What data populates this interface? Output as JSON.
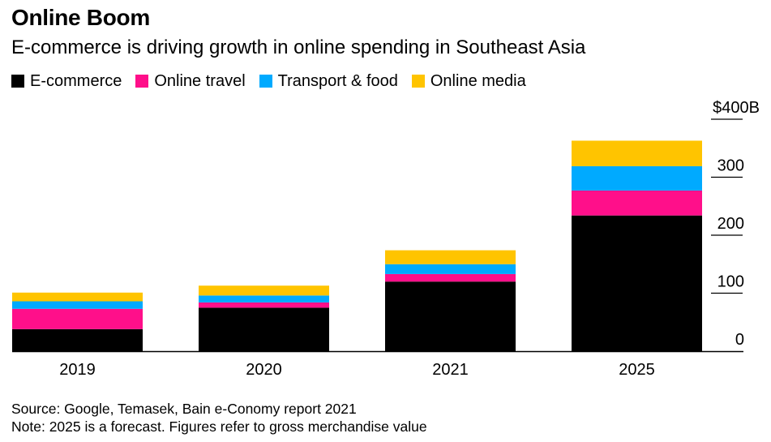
{
  "header": {
    "title": "Online Boom",
    "subtitle": "E-commerce is driving growth in online spending in Southeast Asia"
  },
  "footer": {
    "source": "Source: Google, Temasek, Bain e-Conomy report 2021",
    "note": "Note: 2025 is a forecast. Figures refer to gross merchandise value"
  },
  "colors": {
    "ecommerce": "#000000",
    "online_travel": "#ff0f8a",
    "transport_food": "#00aaff",
    "online_media": "#ffc400"
  },
  "legend": [
    {
      "label": "E-commerce",
      "color": "#000000"
    },
    {
      "label": "Online travel",
      "color": "#ff0f8a"
    },
    {
      "label": "Transport & food",
      "color": "#00aaff"
    },
    {
      "label": "Online media",
      "color": "#ffc400"
    }
  ],
  "chart_data": {
    "type": "bar",
    "stacked": true,
    "title": "Online Boom",
    "subtitle": "E-commerce is driving growth in online spending in Southeast Asia",
    "categories": [
      "2019",
      "2020",
      "2021",
      "2025"
    ],
    "series": [
      {
        "name": "E-commerce",
        "color": "#000000",
        "values": [
          38,
          75,
          120,
          234
        ]
      },
      {
        "name": "Online travel",
        "color": "#ff0f8a",
        "values": [
          35,
          9,
          13,
          43
        ]
      },
      {
        "name": "Transport & food",
        "color": "#00aaff",
        "values": [
          13,
          12,
          17,
          42
        ]
      },
      {
        "name": "Online media",
        "color": "#ffc400",
        "values": [
          15,
          17,
          24,
          44
        ]
      }
    ],
    "ylim": [
      0,
      400
    ],
    "yticks": [
      {
        "value": 0,
        "label": "0"
      },
      {
        "value": 100,
        "label": "100"
      },
      {
        "value": 200,
        "label": "200"
      },
      {
        "value": 300,
        "label": "300"
      },
      {
        "value": 400,
        "label": "$400B"
      }
    ],
    "yaxis_side": "right",
    "legend_position": "top-left",
    "grid": false
  }
}
